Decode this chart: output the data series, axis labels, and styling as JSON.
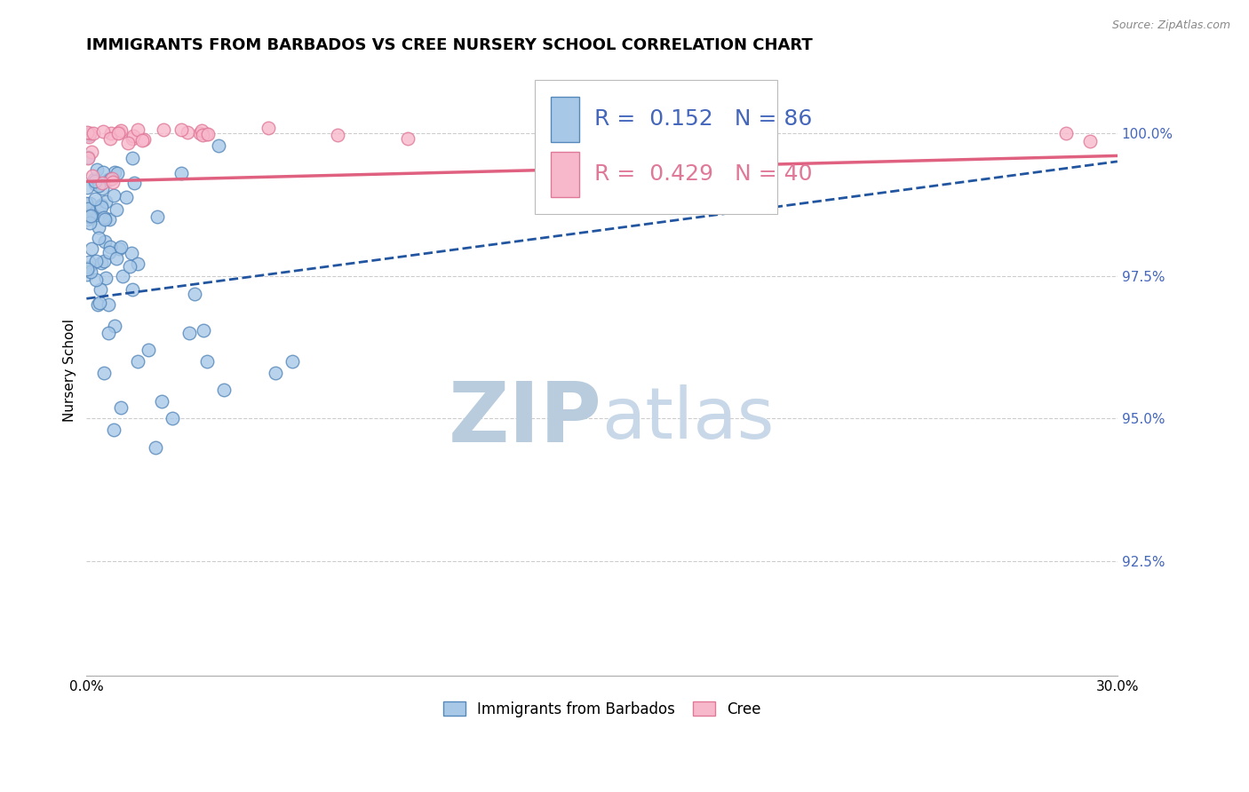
{
  "title": "IMMIGRANTS FROM BARBADOS VS CREE NURSERY SCHOOL CORRELATION CHART",
  "source_text": "Source: ZipAtlas.com",
  "ylabel": "Nursery School",
  "xlim": [
    0.0,
    30.0
  ],
  "ylim": [
    90.5,
    101.2
  ],
  "blue_R": 0.152,
  "blue_N": 86,
  "pink_R": 0.429,
  "pink_N": 40,
  "blue_color": "#a8c8e8",
  "blue_edge": "#5588bb",
  "pink_color": "#f8b8cc",
  "pink_edge": "#e07898",
  "blue_line_color": "#2255a0",
  "pink_line_color": "#e06080",
  "watermark_zip": "ZIP",
  "watermark_atlas": "atlas",
  "watermark_color": "#d0dff0",
  "legend_label_blue": "Immigrants from Barbados",
  "legend_label_pink": "Cree",
  "marker_size": 110,
  "title_fontsize": 13,
  "axis_label_fontsize": 11,
  "tick_fontsize": 11,
  "stat_fontsize": 18,
  "watermark_fontsize_zip": 68,
  "watermark_fontsize_atlas": 58,
  "background_color": "#ffffff",
  "grid_color": "#cccccc",
  "ytick_color": "#4466bb"
}
